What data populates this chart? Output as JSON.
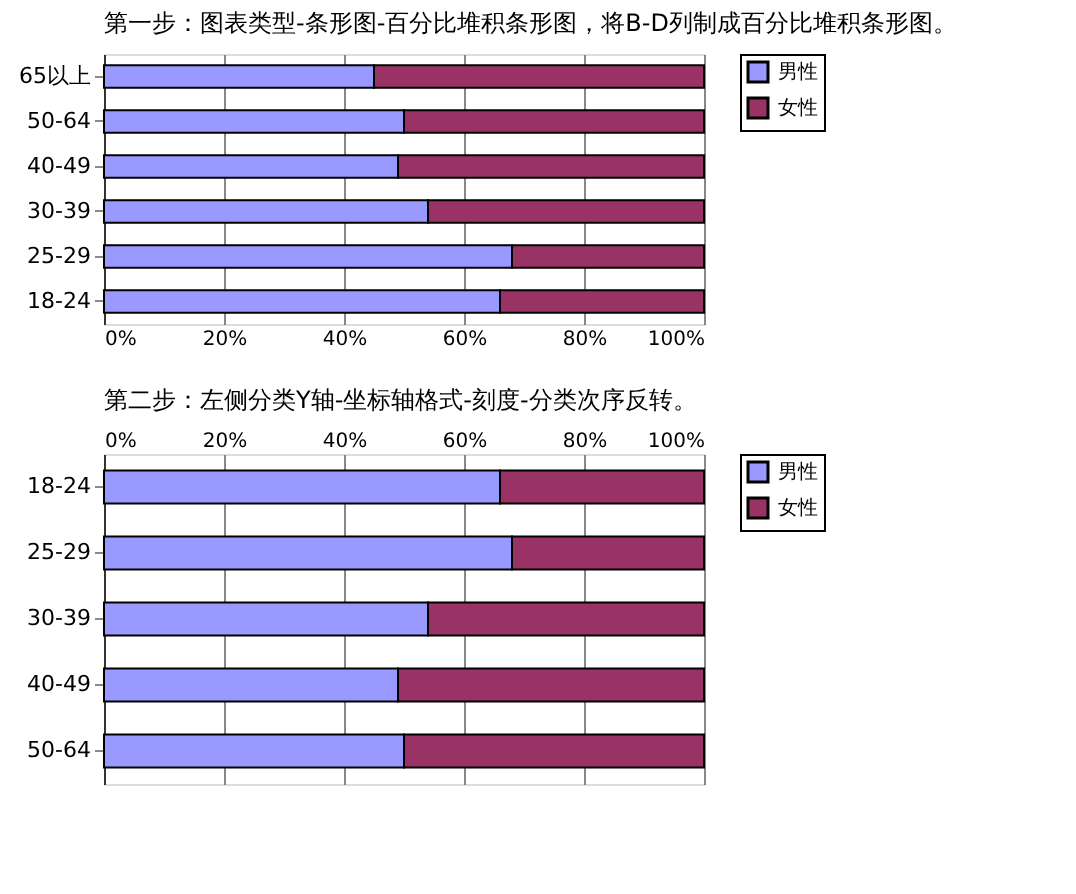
{
  "chart_data": [
    {
      "type": "bar",
      "title": "第一步：图表类型-条形图-百分比堆积条形图，将B-D列制成百分比堆积条形图。",
      "orientation": "horizontal",
      "stacked": true,
      "categories": [
        "65以上",
        "50-64",
        "40-49",
        "30-39",
        "25-29",
        "18-24"
      ],
      "series": [
        {
          "name": "男性",
          "color": "#9999ff",
          "values": [
            45,
            50,
            49,
            54,
            68,
            66
          ]
        },
        {
          "name": "女性",
          "color": "#993366",
          "values": [
            55,
            50,
            51,
            46,
            32,
            34
          ]
        }
      ],
      "xlim": [
        0,
        100
      ],
      "xticks": [
        {
          "value": 0,
          "label": "0%"
        },
        {
          "value": 20,
          "label": "20%"
        },
        {
          "value": 40,
          "label": "40%"
        },
        {
          "value": 60,
          "label": "60%"
        },
        {
          "value": 80,
          "label": "80%"
        },
        {
          "value": 100,
          "label": "100%"
        }
      ],
      "grid": "x",
      "legend": "right"
    },
    {
      "type": "bar",
      "title": "第二步：左侧分类Y轴-坐标轴格式-刻度-分类次序反转。",
      "orientation": "horizontal",
      "stacked": true,
      "categories": [
        "18-24",
        "25-29",
        "30-39",
        "40-49",
        "50-64"
      ],
      "series": [
        {
          "name": "男性",
          "color": "#9999ff",
          "values": [
            66,
            68,
            54,
            49,
            50
          ]
        },
        {
          "name": "女性",
          "color": "#993366",
          "values": [
            34,
            32,
            46,
            51,
            50
          ]
        }
      ],
      "xlim": [
        0,
        100
      ],
      "xticks": [
        {
          "value": 0,
          "label": "0%"
        },
        {
          "value": 20,
          "label": "20%"
        },
        {
          "value": 40,
          "label": "40%"
        },
        {
          "value": 60,
          "label": "60%"
        },
        {
          "value": 80,
          "label": "80%"
        },
        {
          "value": 100,
          "label": "100%"
        }
      ],
      "grid": "x",
      "legend": "right"
    }
  ]
}
